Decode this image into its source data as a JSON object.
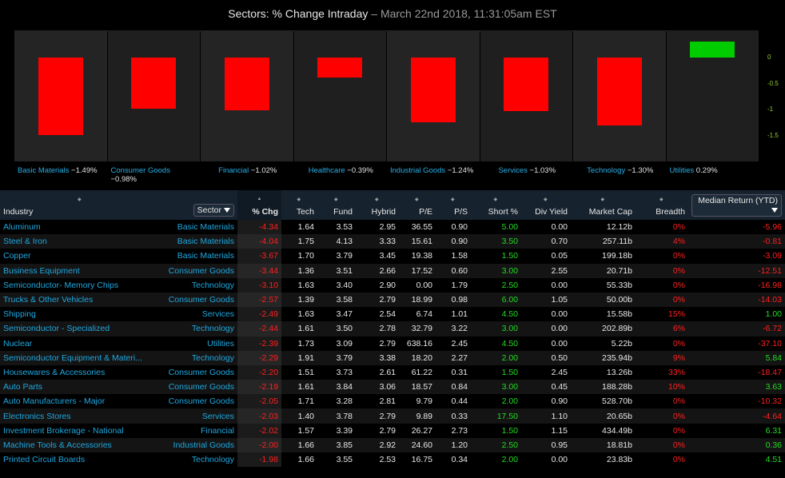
{
  "header": {
    "title": "Sectors: % Change Intraday",
    "date": "– March 22nd 2018, 11:31:05am EST"
  },
  "chart_data": {
    "type": "bar",
    "categories": [
      "Basic Materials",
      "Consumer Goods",
      "Financial",
      "Healthcare",
      "Industrial Goods",
      "Services",
      "Technology",
      "Utilities"
    ],
    "values": [
      -1.49,
      -0.98,
      -1.02,
      -0.39,
      -1.24,
      -1.03,
      -1.3,
      0.29
    ],
    "value_labels": [
      "−1.49%",
      "−0.98%",
      "−1.02%",
      "−0.39%",
      "−1.24%",
      "−1.03%",
      "−1.30%",
      "0.29%"
    ],
    "y_ticks": [
      "0",
      "-0.5",
      "-1",
      "-1.5"
    ],
    "colors": {
      "negative": "#ff0000",
      "positive": "#00cc00"
    },
    "ylim": [
      -1.55,
      0.4
    ]
  },
  "table": {
    "columns": {
      "industry": "Industry",
      "sector": "Sector",
      "chg": "% Chg",
      "tech": "Tech",
      "fund": "Fund",
      "hybrid": "Hybrid",
      "pe": "P/E",
      "ps": "P/S",
      "short": "Short %",
      "div": "Div Yield",
      "mcap": "Market Cap",
      "breadth": "Breadth",
      "median": "Median Return (YTD)"
    },
    "rows": [
      [
        "Aluminum",
        "Basic Materials",
        "-4.34",
        "1.64",
        "3.53",
        "2.95",
        "36.55",
        "0.90",
        "5.00",
        "0.00",
        "12.12b",
        "0%",
        "-5.96"
      ],
      [
        "Steel & Iron",
        "Basic Materials",
        "-4.04",
        "1.75",
        "4.13",
        "3.33",
        "15.61",
        "0.90",
        "3.50",
        "0.70",
        "257.11b",
        "4%",
        "-0.81"
      ],
      [
        "Copper",
        "Basic Materials",
        "-3.67",
        "1.70",
        "3.79",
        "3.45",
        "19.38",
        "1.58",
        "1.50",
        "0.05",
        "199.18b",
        "0%",
        "-3.09"
      ],
      [
        "Business Equipment",
        "Consumer Goods",
        "-3.44",
        "1.36",
        "3.51",
        "2.66",
        "17.52",
        "0.60",
        "3.00",
        "2.55",
        "20.71b",
        "0%",
        "-12.51"
      ],
      [
        "Semiconductor- Memory Chips",
        "Technology",
        "-3.10",
        "1.63",
        "3.40",
        "2.90",
        "0.00",
        "1.79",
        "2.50",
        "0.00",
        "55.33b",
        "0%",
        "-16.98"
      ],
      [
        "Trucks & Other Vehicles",
        "Consumer Goods",
        "-2.57",
        "1.39",
        "3.58",
        "2.79",
        "18.99",
        "0.98",
        "6.00",
        "1.05",
        "50.00b",
        "0%",
        "-14.03"
      ],
      [
        "Shipping",
        "Services",
        "-2.49",
        "1.63",
        "3.47",
        "2.54",
        "6.74",
        "1.01",
        "4.50",
        "0.00",
        "15.58b",
        "15%",
        "1.00"
      ],
      [
        "Semiconductor - Specialized",
        "Technology",
        "-2.44",
        "1.61",
        "3.50",
        "2.78",
        "32.79",
        "3.22",
        "3.00",
        "0.00",
        "202.89b",
        "6%",
        "-6.72"
      ],
      [
        "Nuclear",
        "Utilities",
        "-2.39",
        "1.73",
        "3.09",
        "2.79",
        "638.16",
        "2.45",
        "4.50",
        "0.00",
        "5.22b",
        "0%",
        "-37.10"
      ],
      [
        "Semiconductor Equipment & Materi...",
        "Technology",
        "-2.29",
        "1.91",
        "3.79",
        "3.38",
        "18.20",
        "2.27",
        "2.00",
        "0.50",
        "235.94b",
        "9%",
        "5.84"
      ],
      [
        "Housewares & Accessories",
        "Consumer Goods",
        "-2.20",
        "1.51",
        "3.73",
        "2.61",
        "61.22",
        "0.31",
        "1.50",
        "2.45",
        "13.26b",
        "33%",
        "-18.47"
      ],
      [
        "Auto Parts",
        "Consumer Goods",
        "-2.19",
        "1.61",
        "3.84",
        "3.06",
        "18.57",
        "0.84",
        "3.00",
        "0.45",
        "188.28b",
        "10%",
        "3.63"
      ],
      [
        "Auto Manufacturers - Major",
        "Consumer Goods",
        "-2.05",
        "1.71",
        "3.28",
        "2.81",
        "9.79",
        "0.44",
        "2.00",
        "0.90",
        "528.70b",
        "0%",
        "-10.32"
      ],
      [
        "Electronics Stores",
        "Services",
        "-2.03",
        "1.40",
        "3.78",
        "2.79",
        "9.89",
        "0.33",
        "17.50",
        "1.10",
        "20.65b",
        "0%",
        "-4.64"
      ],
      [
        "Investment Brokerage - National",
        "Financial",
        "-2.02",
        "1.57",
        "3.39",
        "2.79",
        "26.27",
        "2.73",
        "1.50",
        "1.15",
        "434.49b",
        "0%",
        "6.31"
      ],
      [
        "Machine Tools & Accessories",
        "Industrial Goods",
        "-2.00",
        "1.66",
        "3.85",
        "2.92",
        "24.60",
        "1.20",
        "2.50",
        "0.95",
        "18.81b",
        "0%",
        "0.36"
      ],
      [
        "Printed Circuit Boards",
        "Technology",
        "-1.98",
        "1.66",
        "3.55",
        "2.53",
        "16.75",
        "0.34",
        "2.00",
        "0.00",
        "23.83b",
        "0%",
        "4.51"
      ]
    ]
  }
}
